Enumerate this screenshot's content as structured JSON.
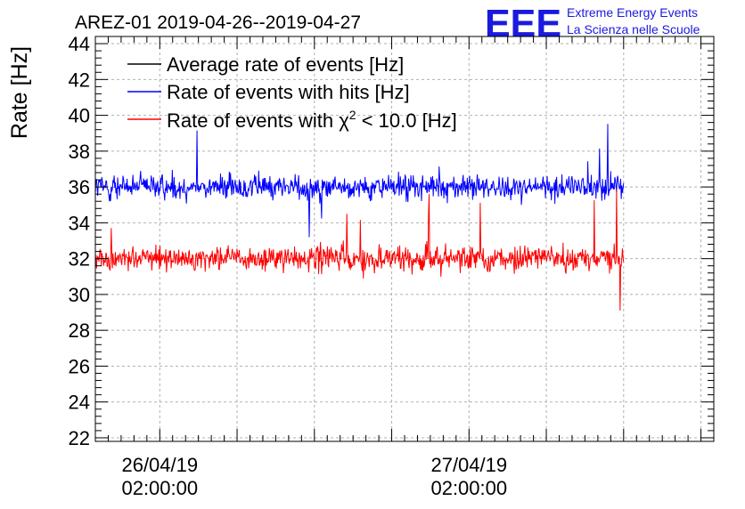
{
  "header": {
    "title": "AREZ-01 2019-04-26--2019-04-27",
    "logo": "EEE",
    "org_line1": "Extreme Energy Events",
    "org_line2": "La Scienza nelle Scuole"
  },
  "colors": {
    "average": "#000000",
    "hits": "#0000ff",
    "chi2": "#ff0000",
    "logo": "#1a1adf"
  },
  "chart_data": {
    "type": "line",
    "title": "AREZ-01 2019-04-26--2019-04-27",
    "ylabel": "Rate [Hz]",
    "xlabel": "",
    "ylim": [
      21.8,
      44.4
    ],
    "yticks": [
      "22",
      "24",
      "26",
      "28",
      "30",
      "32",
      "34",
      "36",
      "38",
      "40",
      "42",
      "44"
    ],
    "x_domain_hours": [
      0,
      48
    ],
    "x_data_range_hours": [
      0,
      41
    ],
    "xticks": [
      {
        "hour": 5,
        "line1": "26/04/19",
        "line2": "02:00:00"
      },
      {
        "hour": 29,
        "line1": "27/04/19",
        "line2": "02:00:00"
      }
    ],
    "grid": true,
    "legend_position": "top-left",
    "series": [
      {
        "name": "Average rate of events [Hz]",
        "color": "#000000",
        "points": []
      },
      {
        "name": "Rate of events with hits [Hz]",
        "color": "#0000ff",
        "mean": 36.0,
        "spread": 0.9,
        "range": [
          33.2,
          39.8
        ]
      },
      {
        "name": "Rate of events with χ² < 10.0 [Hz]",
        "legend_prefix": "Rate of events with ",
        "legend_chi": "χ",
        "legend_sup": "2",
        "legend_suffix": " < 10.0 [Hz]",
        "color": "#ff0000",
        "mean": 32.0,
        "spread": 0.9,
        "range": [
          29.1,
          35.9
        ]
      }
    ]
  }
}
